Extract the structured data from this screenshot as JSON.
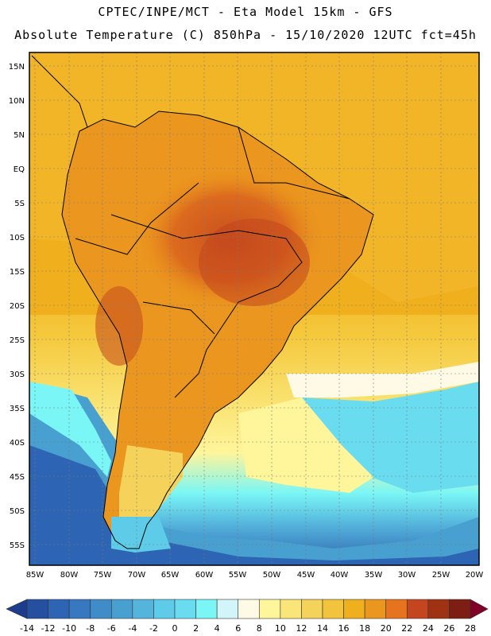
{
  "header": {
    "title_line1": "CPTEC/INPE/MCT -  Eta Model 15km - GFS",
    "title_line2": "Absolute Temperature (C) 850hPa - 15/10/2020 12UTC fct=45h"
  },
  "map": {
    "lat_labels": [
      "15N",
      "10N",
      "5N",
      "EQ",
      "5S",
      "10S",
      "15S",
      "20S",
      "25S",
      "30S",
      "35S",
      "40S",
      "45S",
      "50S",
      "55S"
    ],
    "lon_labels": [
      "85W",
      "80W",
      "75W",
      "70W",
      "65W",
      "60W",
      "55W",
      "50W",
      "45W",
      "40W",
      "35W",
      "30W",
      "25W",
      "20W"
    ]
  },
  "colorbar": {
    "labels": [
      "-14",
      "-12",
      "-10",
      "-8",
      "-6",
      "-4",
      "-2",
      "0",
      "2",
      "4",
      "6",
      "8",
      "10",
      "12",
      "14",
      "16",
      "18",
      "20",
      "22",
      "24",
      "26",
      "28"
    ],
    "colors": [
      "#1e3c8c",
      "#25509f",
      "#2d64b3",
      "#3778c0",
      "#3f8cc8",
      "#48a0d0",
      "#55b4dc",
      "#5ecbe8",
      "#6adcf0",
      "#7af6f6",
      "#d2f5fa",
      "#fffae6",
      "#fff59b",
      "#fae678",
      "#f5d25a",
      "#f2c33c",
      "#f0b01e",
      "#eb961e",
      "#e6731e",
      "#c3461e",
      "#a03214",
      "#7d1e14",
      "#800028"
    ]
  }
}
